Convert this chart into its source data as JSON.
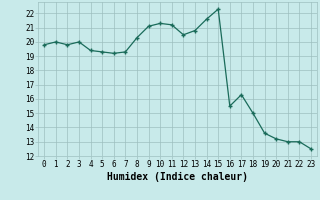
{
  "xlabel": "Humidex (Indice chaleur)",
  "x": [
    0,
    1,
    2,
    3,
    4,
    5,
    6,
    7,
    8,
    9,
    10,
    11,
    12,
    13,
    14,
    15,
    16,
    17,
    18,
    19,
    20,
    21,
    22,
    23
  ],
  "y": [
    19.8,
    20.0,
    19.8,
    20.0,
    19.4,
    19.3,
    19.2,
    19.3,
    20.3,
    21.1,
    21.3,
    21.2,
    20.5,
    20.8,
    21.6,
    22.3,
    15.5,
    16.3,
    15.0,
    13.6,
    13.2,
    13.0,
    13.0,
    12.5
  ],
  "line_color": "#1a6b5a",
  "marker": "+",
  "markersize": 3.5,
  "linewidth": 0.9,
  "ylim": [
    12,
    22.8
  ],
  "xlim": [
    -0.5,
    23.5
  ],
  "yticks": [
    12,
    13,
    14,
    15,
    16,
    17,
    18,
    19,
    20,
    21,
    22
  ],
  "xticks": [
    0,
    1,
    2,
    3,
    4,
    5,
    6,
    7,
    8,
    9,
    10,
    11,
    12,
    13,
    14,
    15,
    16,
    17,
    18,
    19,
    20,
    21,
    22,
    23
  ],
  "bg_color": "#c8eaea",
  "grid_color": "#9dbfbf",
  "tick_labelsize": 5.5,
  "xlabel_fontsize": 7.0,
  "xlabel_fontweight": "bold",
  "markeredgewidth": 1.0
}
